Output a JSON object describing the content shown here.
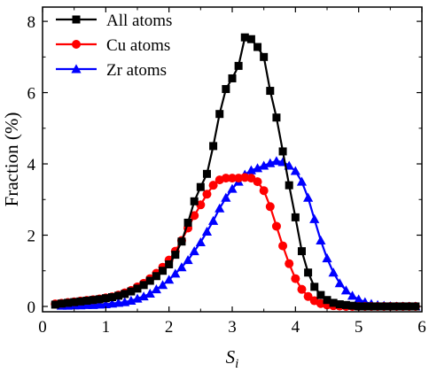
{
  "chart_data": {
    "type": "line",
    "xlabel": "S",
    "xlabel_subscript": "i",
    "ylabel": "Fraction (%)",
    "xlim": [
      0,
      6
    ],
    "ylim": [
      -0.15,
      8.4
    ],
    "xticks": [
      0,
      1,
      2,
      3,
      4,
      5,
      6
    ],
    "yticks": [
      0,
      2,
      4,
      6,
      8
    ],
    "grid": false,
    "legend_position": "top-left",
    "series": [
      {
        "name": "All atoms",
        "color": "#000000",
        "marker": "square",
        "x": [
          0.2,
          0.3,
          0.4,
          0.5,
          0.6,
          0.7,
          0.8,
          0.9,
          1.0,
          1.1,
          1.2,
          1.3,
          1.4,
          1.5,
          1.6,
          1.7,
          1.8,
          1.9,
          2.0,
          2.1,
          2.2,
          2.3,
          2.4,
          2.5,
          2.6,
          2.7,
          2.8,
          2.9,
          3.0,
          3.1,
          3.2,
          3.3,
          3.4,
          3.5,
          3.6,
          3.7,
          3.8,
          3.9,
          4.0,
          4.1,
          4.2,
          4.3,
          4.4,
          4.5,
          4.6,
          4.7,
          4.8,
          4.9,
          5.0,
          5.1,
          5.2,
          5.3,
          5.4,
          5.5,
          5.6,
          5.7,
          5.8,
          5.9
        ],
        "values": [
          0.05,
          0.08,
          0.1,
          0.12,
          0.14,
          0.16,
          0.18,
          0.2,
          0.23,
          0.26,
          0.3,
          0.35,
          0.42,
          0.5,
          0.6,
          0.72,
          0.85,
          1.0,
          1.18,
          1.45,
          1.82,
          2.35,
          2.95,
          3.35,
          3.72,
          4.5,
          5.4,
          6.1,
          6.4,
          6.75,
          7.55,
          7.5,
          7.28,
          7.0,
          6.05,
          5.3,
          4.35,
          3.4,
          2.5,
          1.55,
          0.95,
          0.55,
          0.32,
          0.18,
          0.1,
          0.06,
          0.04,
          0.02,
          0.0,
          0.0,
          0.0,
          0.0,
          0.0,
          0.0,
          0.0,
          0.0,
          0.0,
          0.0
        ]
      },
      {
        "name": "Cu atoms",
        "color": "#ff0000",
        "marker": "circle",
        "x": [
          0.2,
          0.3,
          0.4,
          0.5,
          0.6,
          0.7,
          0.8,
          0.9,
          1.0,
          1.1,
          1.2,
          1.3,
          1.4,
          1.5,
          1.6,
          1.7,
          1.8,
          1.9,
          2.0,
          2.1,
          2.2,
          2.3,
          2.4,
          2.5,
          2.6,
          2.7,
          2.8,
          2.9,
          3.0,
          3.1,
          3.2,
          3.3,
          3.4,
          3.5,
          3.6,
          3.7,
          3.8,
          3.9,
          4.0,
          4.1,
          4.2,
          4.3,
          4.4,
          4.5,
          4.6,
          4.7,
          4.8,
          4.9,
          5.0,
          5.1,
          5.2,
          5.3,
          5.4,
          5.5,
          5.6,
          5.7,
          5.8,
          5.9
        ],
        "values": [
          0.07,
          0.09,
          0.11,
          0.13,
          0.15,
          0.17,
          0.19,
          0.21,
          0.24,
          0.27,
          0.32,
          0.38,
          0.45,
          0.55,
          0.65,
          0.78,
          0.93,
          1.1,
          1.3,
          1.55,
          1.85,
          2.2,
          2.55,
          2.85,
          3.15,
          3.4,
          3.55,
          3.6,
          3.6,
          3.6,
          3.62,
          3.6,
          3.5,
          3.25,
          2.8,
          2.25,
          1.7,
          1.2,
          0.78,
          0.48,
          0.28,
          0.16,
          0.08,
          0.04,
          0.02,
          0.01,
          0.0,
          0.0,
          0.0,
          0.0,
          0.0,
          0.0,
          0.0,
          0.0,
          0.0,
          0.0,
          0.0,
          0.0
        ]
      },
      {
        "name": "Zr atoms",
        "color": "#0000ff",
        "marker": "triangle",
        "x": [
          0.3,
          0.4,
          0.5,
          0.6,
          0.7,
          0.8,
          0.9,
          1.0,
          1.1,
          1.2,
          1.3,
          1.4,
          1.5,
          1.6,
          1.7,
          1.8,
          1.9,
          2.0,
          2.1,
          2.2,
          2.3,
          2.4,
          2.5,
          2.6,
          2.7,
          2.8,
          2.9,
          3.0,
          3.1,
          3.2,
          3.3,
          3.4,
          3.5,
          3.6,
          3.7,
          3.8,
          3.9,
          4.0,
          4.1,
          4.2,
          4.3,
          4.4,
          4.5,
          4.6,
          4.7,
          4.8,
          4.9,
          5.0,
          5.1,
          5.2,
          5.3,
          5.4,
          5.5,
          5.6,
          5.7,
          5.8,
          5.9
        ],
        "values": [
          0.02,
          0.02,
          0.03,
          0.03,
          0.04,
          0.04,
          0.05,
          0.06,
          0.08,
          0.1,
          0.12,
          0.16,
          0.22,
          0.28,
          0.36,
          0.48,
          0.6,
          0.75,
          0.92,
          1.1,
          1.3,
          1.55,
          1.8,
          2.1,
          2.4,
          2.75,
          3.05,
          3.3,
          3.5,
          3.7,
          3.82,
          3.88,
          3.95,
          4.02,
          4.08,
          4.05,
          3.95,
          3.8,
          3.5,
          3.05,
          2.45,
          1.85,
          1.35,
          0.95,
          0.65,
          0.45,
          0.3,
          0.2,
          0.12,
          0.07,
          0.04,
          0.02,
          0.01,
          0.0,
          0.0,
          0.0,
          0.0
        ]
      }
    ]
  }
}
